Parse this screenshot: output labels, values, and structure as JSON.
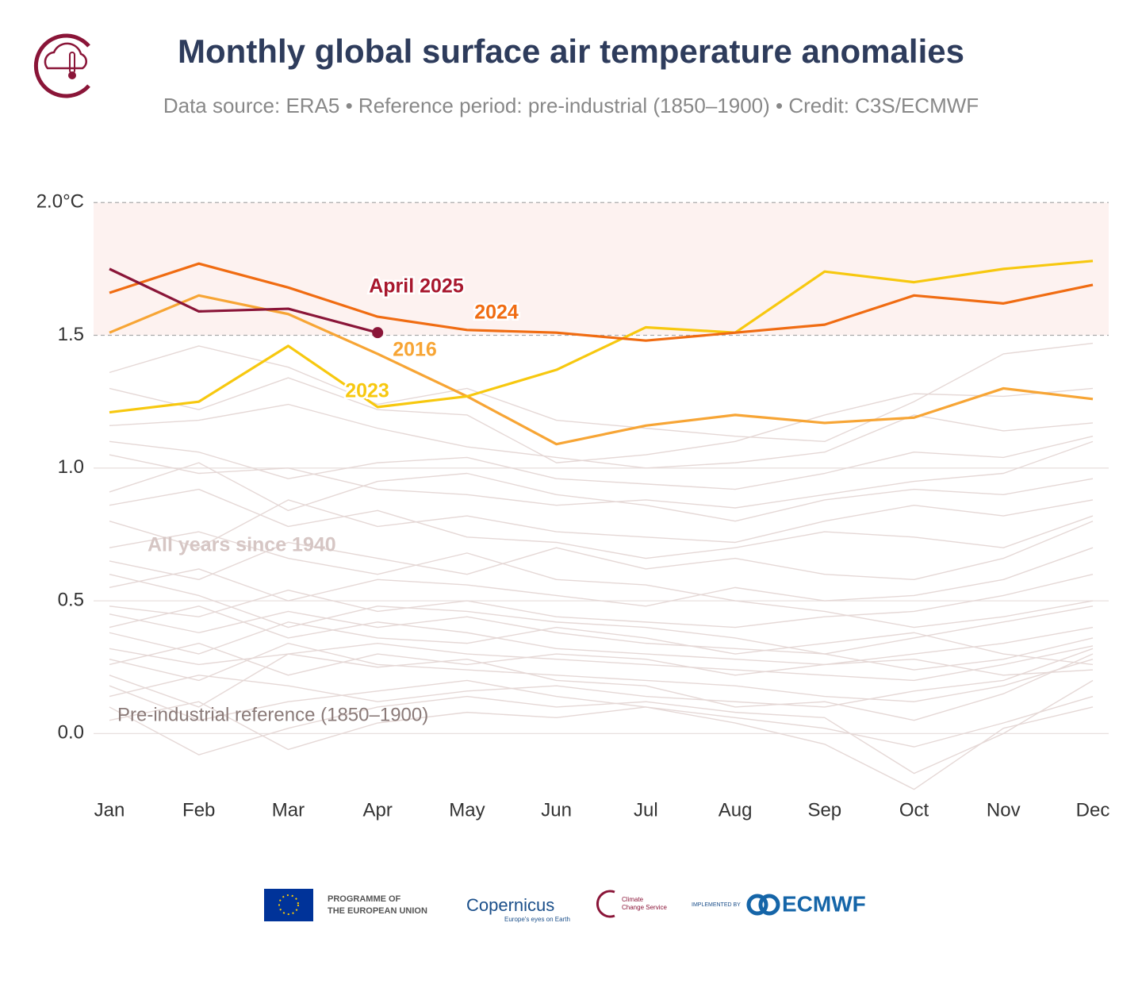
{
  "header": {
    "title": "Monthly global surface air temperature anomalies",
    "subtitle": "Data source: ERA5 • Reference period: pre-industrial (1850–1900) • Credit: C3S/ECMWF"
  },
  "chart_data": {
    "type": "line",
    "categories": [
      "Jan",
      "Feb",
      "Mar",
      "Apr",
      "May",
      "Jun",
      "Jul",
      "Aug",
      "Sep",
      "Oct",
      "Nov",
      "Dec"
    ],
    "ylim": [
      -0.22,
      2.05
    ],
    "yticks": [
      {
        "value": 0,
        "label": "0.0"
      },
      0.5,
      {
        "value": 1,
        "label": "1.0"
      },
      1.5,
      {
        "value": 2,
        "label": "2.0°C"
      }
    ],
    "grid": true,
    "shaded_band": [
      1.5,
      2.0
    ],
    "annotations": [
      "All years since 1940",
      "Pre-industrial reference (1850–1900)"
    ],
    "background_series": {
      "color": "#e5d8d6",
      "values": [
        [
          1.05,
          0.98,
          1.0,
          0.92,
          0.9,
          0.86,
          0.88,
          0.85,
          0.9,
          0.95,
          0.98,
          1.1
        ],
        [
          1.36,
          1.46,
          1.38,
          1.24,
          1.3,
          1.18,
          1.15,
          1.12,
          1.1,
          1.25,
          1.43,
          1.47
        ],
        [
          1.3,
          1.22,
          1.34,
          1.22,
          1.2,
          1.02,
          1.05,
          1.1,
          1.2,
          1.28,
          1.27,
          1.3
        ],
        [
          1.16,
          1.18,
          1.24,
          1.15,
          1.08,
          1.04,
          1.0,
          1.02,
          1.06,
          1.2,
          1.14,
          1.17
        ],
        [
          0.91,
          1.02,
          0.84,
          0.95,
          0.98,
          0.9,
          0.86,
          0.8,
          0.88,
          0.92,
          0.9,
          0.96
        ],
        [
          0.8,
          0.7,
          0.88,
          0.78,
          0.82,
          0.76,
          0.74,
          0.72,
          0.8,
          0.86,
          0.82,
          0.88
        ],
        [
          0.65,
          0.58,
          0.72,
          0.66,
          0.6,
          0.7,
          0.62,
          0.66,
          0.6,
          0.58,
          0.66,
          0.8
        ],
        [
          0.55,
          0.62,
          0.5,
          0.58,
          0.56,
          0.52,
          0.48,
          0.55,
          0.5,
          0.52,
          0.58,
          0.7
        ],
        [
          0.45,
          0.38,
          0.46,
          0.4,
          0.44,
          0.38,
          0.34,
          0.32,
          0.3,
          0.36,
          0.42,
          0.48
        ],
        [
          0.4,
          0.48,
          0.36,
          0.42,
          0.38,
          0.32,
          0.3,
          0.28,
          0.26,
          0.3,
          0.34,
          0.4
        ],
        [
          0.32,
          0.26,
          0.3,
          0.34,
          0.3,
          0.28,
          0.26,
          0.24,
          0.22,
          0.2,
          0.26,
          0.33
        ],
        [
          0.28,
          0.2,
          0.34,
          0.26,
          0.24,
          0.22,
          0.2,
          0.18,
          0.14,
          0.12,
          0.18,
          0.28
        ],
        [
          0.22,
          0.1,
          0.3,
          0.25,
          0.28,
          0.2,
          0.18,
          0.1,
          0.12,
          0.05,
          0.15,
          0.3
        ],
        [
          0.18,
          0.05,
          0.12,
          0.16,
          0.2,
          0.14,
          0.1,
          0.06,
          0.02,
          -0.05,
          0.04,
          0.14
        ],
        [
          0.1,
          -0.08,
          0.02,
          0.1,
          0.14,
          0.1,
          0.12,
          0.08,
          0.06,
          -0.15,
          0.0,
          0.2
        ],
        [
          0.05,
          0.12,
          -0.06,
          0.04,
          0.08,
          0.06,
          0.1,
          0.04,
          -0.04,
          -0.21,
          0.02,
          0.1
        ],
        [
          0.6,
          0.52,
          0.4,
          0.48,
          0.46,
          0.42,
          0.4,
          0.36,
          0.3,
          0.24,
          0.28,
          0.36
        ],
        [
          0.7,
          0.76,
          0.66,
          0.6,
          0.68,
          0.58,
          0.56,
          0.5,
          0.46,
          0.4,
          0.44,
          0.5
        ],
        [
          0.38,
          0.3,
          0.42,
          0.36,
          0.34,
          0.4,
          0.36,
          0.3,
          0.34,
          0.38,
          0.3,
          0.26
        ],
        [
          0.86,
          0.92,
          0.78,
          0.84,
          0.74,
          0.72,
          0.66,
          0.7,
          0.76,
          0.74,
          0.7,
          0.82
        ],
        [
          1.1,
          1.06,
          0.96,
          1.02,
          1.04,
          0.96,
          0.94,
          0.92,
          0.98,
          1.06,
          1.04,
          1.12
        ],
        [
          0.48,
          0.44,
          0.54,
          0.46,
          0.5,
          0.44,
          0.42,
          0.4,
          0.44,
          0.46,
          0.52,
          0.6
        ],
        [
          0.26,
          0.34,
          0.22,
          0.3,
          0.26,
          0.3,
          0.28,
          0.22,
          0.26,
          0.28,
          0.22,
          0.24
        ],
        [
          0.14,
          0.22,
          0.18,
          0.12,
          0.16,
          0.18,
          0.14,
          0.12,
          0.1,
          0.16,
          0.2,
          0.32
        ]
      ]
    },
    "series": [
      {
        "name": "2016",
        "color": "#f7a535",
        "values": [
          1.51,
          1.65,
          1.58,
          1.43,
          1.27,
          1.09,
          1.16,
          1.2,
          1.17,
          1.19,
          1.3,
          1.26
        ]
      },
      {
        "name": "2023",
        "color": "#f7c80f",
        "values": [
          1.21,
          1.25,
          1.46,
          1.23,
          1.27,
          1.37,
          1.53,
          1.51,
          1.74,
          1.7,
          1.75,
          1.78
        ]
      },
      {
        "name": "2024",
        "color": "#f06c12",
        "values": [
          1.66,
          1.77,
          1.68,
          1.57,
          1.52,
          1.51,
          1.48,
          1.51,
          1.54,
          1.65,
          1.62,
          1.69
        ]
      },
      {
        "name": "April 2025",
        "color": "#8a1538",
        "values": [
          1.75,
          1.59,
          1.6,
          1.51,
          null,
          null,
          null,
          null,
          null,
          null,
          null,
          null
        ]
      }
    ]
  },
  "footer": {
    "eu": [
      "PROGRAMME OF",
      "THE EUROPEAN UNION"
    ],
    "copernicus": [
      "Copernicus",
      "Europe's eyes on Earth"
    ],
    "c3s": [
      "Climate",
      "Change Service"
    ],
    "ecmwf": [
      "IMPLEMENTED BY",
      "ECMWF"
    ]
  }
}
